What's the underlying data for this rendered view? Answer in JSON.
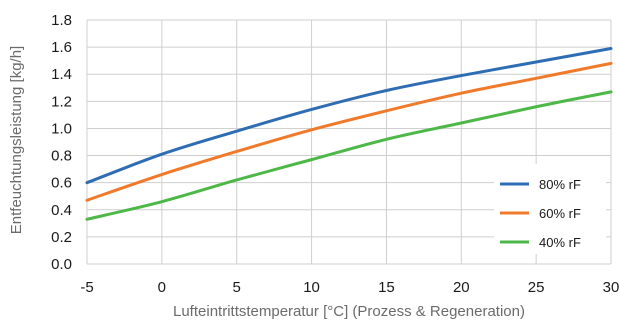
{
  "chart_data": {
    "type": "line",
    "xlabel": "Lufteintrittstemperatur [°C] (Prozess & Regeneration)",
    "ylabel": "Entfeuchtungsleistung [kg/h]",
    "xlim": [
      -5,
      30
    ],
    "ylim": [
      0,
      1.8
    ],
    "x_ticks": [
      "-5",
      "0",
      "5",
      "10",
      "15",
      "20",
      "25",
      "30"
    ],
    "y_ticks": [
      "0.0",
      "0.2",
      "0.4",
      "0.6",
      "0.8",
      "1.0",
      "1.2",
      "1.4",
      "1.6",
      "1.8"
    ],
    "grid": true,
    "legend_position": "bottom-right",
    "x": [
      -5,
      0,
      5,
      10,
      15,
      20,
      25,
      30
    ],
    "series": [
      {
        "name": "80% rF",
        "color": "#2e6db4",
        "values": [
          0.6,
          0.81,
          0.98,
          1.14,
          1.28,
          1.39,
          1.49,
          1.59
        ]
      },
      {
        "name": "60% rF",
        "color": "#f07a2a",
        "values": [
          0.47,
          0.66,
          0.83,
          0.99,
          1.13,
          1.26,
          1.37,
          1.48
        ]
      },
      {
        "name": "40% rF",
        "color": "#4db848",
        "values": [
          0.33,
          0.46,
          0.62,
          0.77,
          0.92,
          1.04,
          1.16,
          1.27
        ]
      }
    ]
  }
}
